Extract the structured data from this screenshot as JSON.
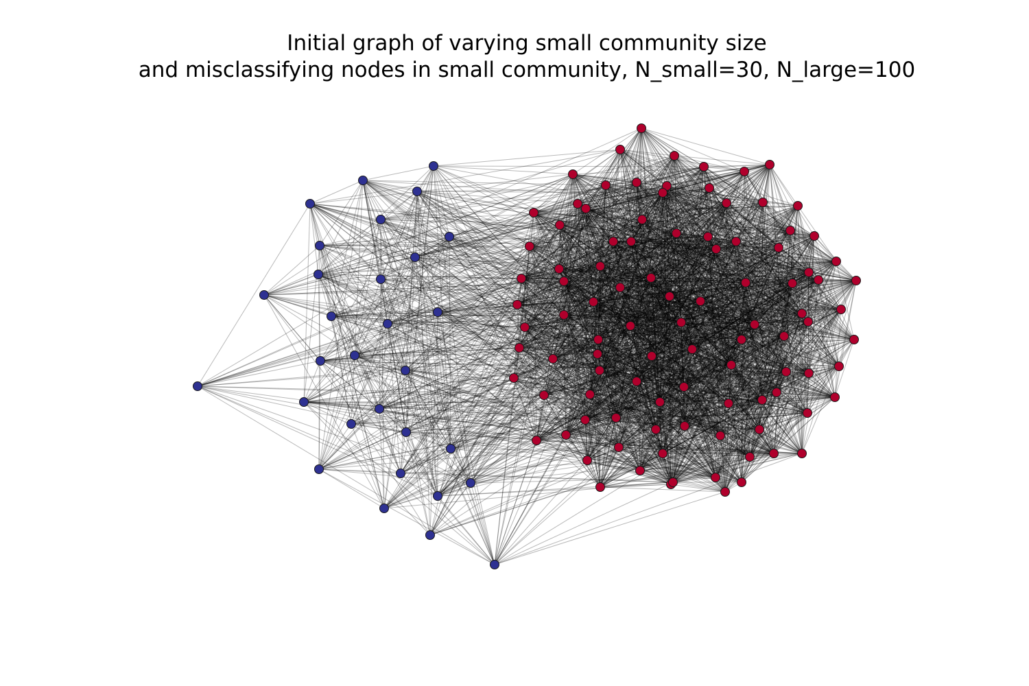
{
  "figure": {
    "title_line1": "Initial graph of varying small community size",
    "title_line2": "and misclassifying nodes in small community, N_small=30, N_large=100"
  },
  "graph": {
    "communities": [
      {
        "name": "small",
        "node_count": 30,
        "color": "#2e3192"
      },
      {
        "name": "large",
        "node_count": 100,
        "color": "#b0002c"
      }
    ],
    "edge_color": "#000000",
    "edge_opacity": 0.28,
    "layout": "force-directed",
    "axes_visible": false
  }
}
